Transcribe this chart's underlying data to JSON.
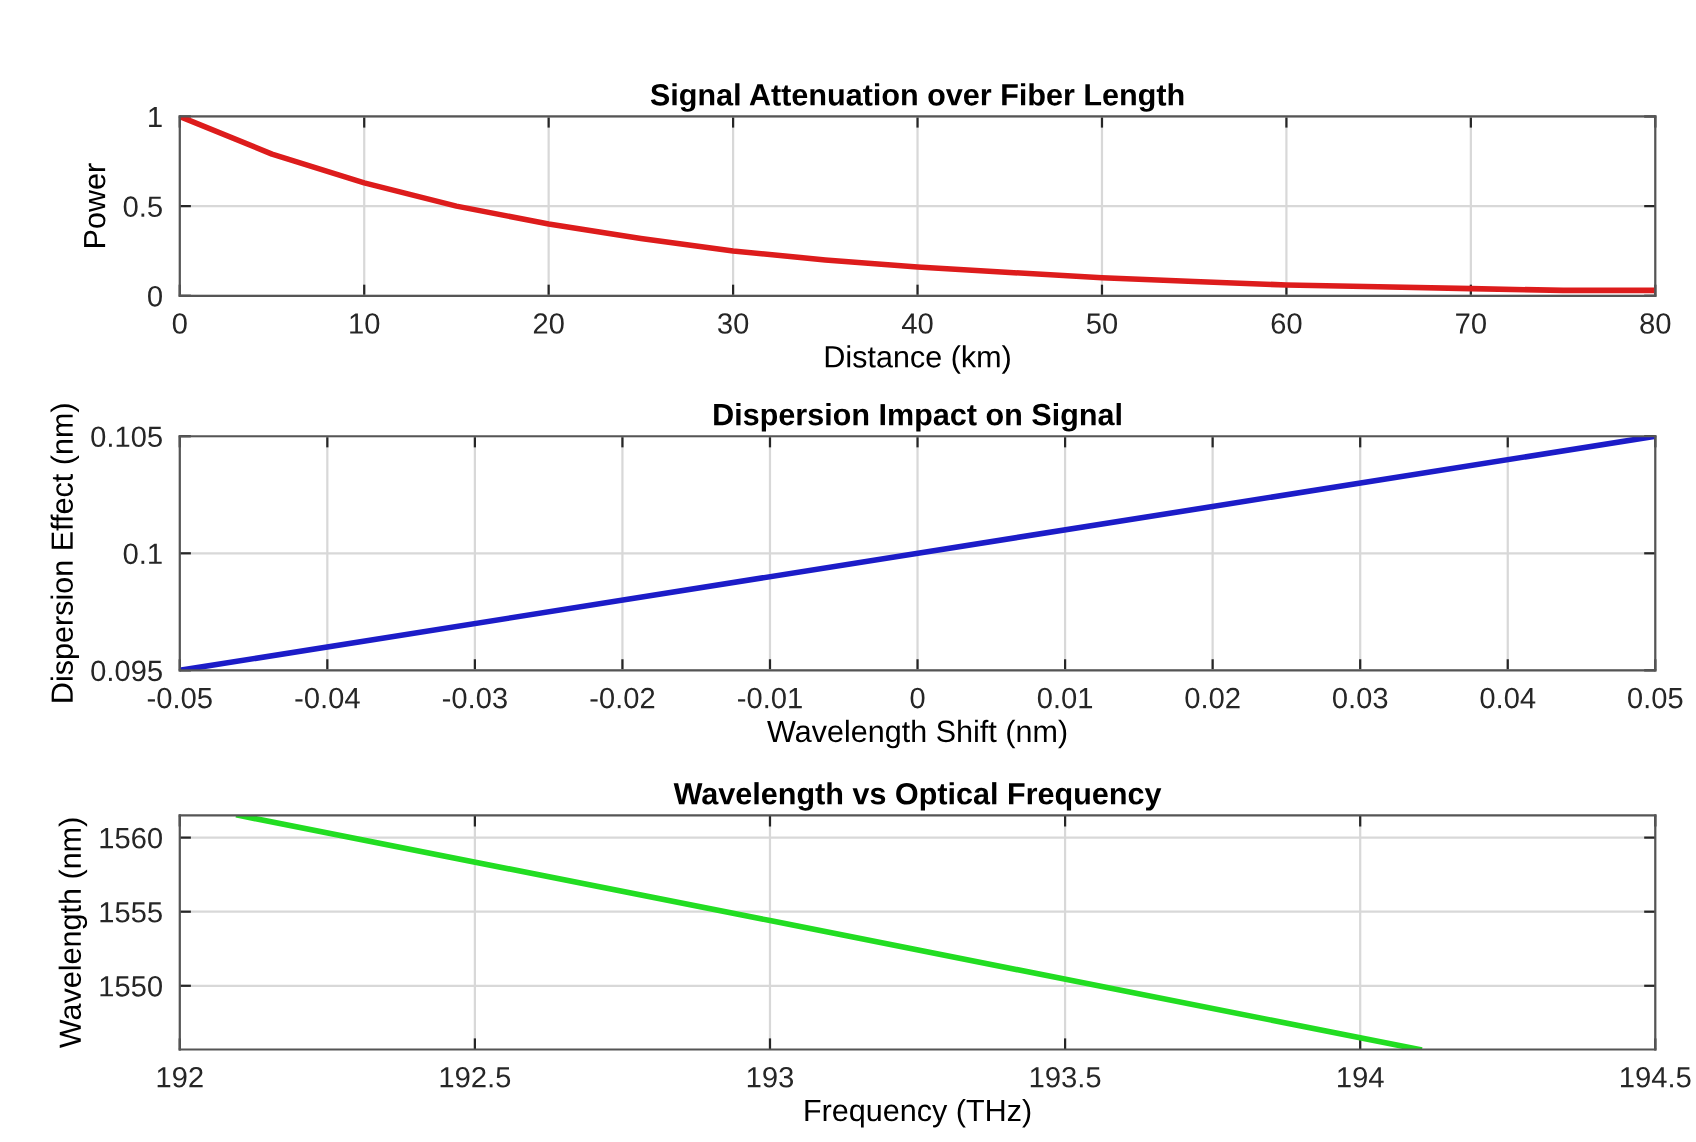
{
  "chart_data": [
    {
      "type": "line",
      "title": "Signal Attenuation over Fiber Length",
      "xlabel": "Distance (km)",
      "ylabel": "Power",
      "x": [
        0,
        5,
        10,
        15,
        20,
        25,
        30,
        35,
        40,
        45,
        50,
        55,
        60,
        65,
        70,
        75,
        80
      ],
      "series": [
        {
          "color": "#dd1c1c",
          "values": [
            1,
            0.79,
            0.63,
            0.5,
            0.4,
            0.32,
            0.25,
            0.2,
            0.16,
            0.13,
            0.1,
            0.08,
            0.06,
            0.05,
            0.04,
            0.03,
            0.03
          ]
        }
      ],
      "xlim": [
        0,
        80
      ],
      "xticks": [
        0,
        10,
        20,
        30,
        40,
        50,
        60,
        70,
        80
      ],
      "ylim": [
        0,
        1
      ],
      "yticks": [
        0,
        0.5,
        1
      ],
      "grid": true
    },
    {
      "type": "line",
      "title": "Dispersion Impact on Signal",
      "xlabel": "Wavelength Shift (nm)",
      "ylabel": "Dispersion Effect (nm)",
      "x": [
        -0.05,
        0.05
      ],
      "series": [
        {
          "color": "#1c1cc8",
          "values": [
            0.095,
            0.105
          ]
        }
      ],
      "xlim": [
        -0.05,
        0.05
      ],
      "xticks": [
        -0.05,
        -0.04,
        -0.03,
        -0.02,
        -0.01,
        0,
        0.01,
        0.02,
        0.03,
        0.04,
        0.05
      ],
      "ylim": [
        0.095,
        0.105
      ],
      "yticks": [
        0.095,
        0.1,
        0.105
      ],
      "grid": true
    },
    {
      "type": "line",
      "title": "Wavelength vs Optical Frequency",
      "xlabel": "Frequency (THz)",
      "ylabel": "Wavelength (nm)",
      "x": [
        192.1,
        193,
        194.1
      ],
      "series": [
        {
          "color": "#22dd22",
          "values": [
            1561.5,
            1554.4,
            1545.7
          ]
        }
      ],
      "xlim": [
        192,
        194.5
      ],
      "xticks": [
        192,
        192.5,
        193,
        193.5,
        194,
        194.5
      ],
      "ylim": [
        1545.7,
        1561.5
      ],
      "yticks": [
        1550,
        1555,
        1560
      ],
      "grid": true
    }
  ]
}
